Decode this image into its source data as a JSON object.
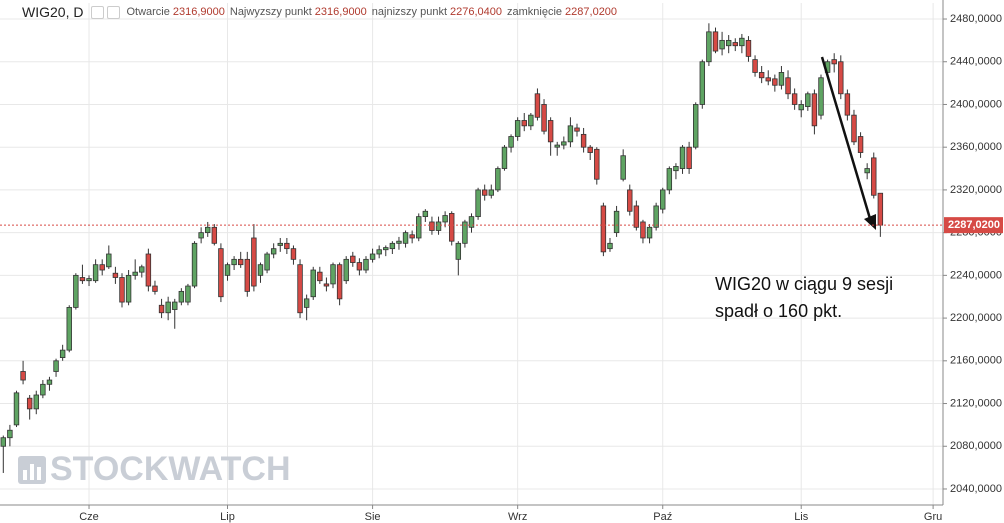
{
  "chart_data": {
    "type": "candlestick",
    "symbol": "WIG20, D",
    "header_fields": [
      {
        "name": "Otwarcie",
        "value": "2316,9000"
      },
      {
        "name": "Najwyzszy punkt",
        "value": "2316,9000"
      },
      {
        "name": "najnizszy punkt",
        "value": "2276,0400"
      },
      {
        "name": "zamknięcie",
        "value": "2287,0200"
      }
    ],
    "annotation": [
      "WIG20 w ciągu 9 sesji",
      "spadł o 160 pkt."
    ],
    "watermark": "STOCKWATCH",
    "up_color": "#5fa463",
    "down_color": "#d64a45",
    "grid": true,
    "xlim": [
      -0.5,
      142.5
    ],
    "xticks": [
      {
        "value": 13,
        "label": "Cze"
      },
      {
        "value": 34,
        "label": "Lip"
      },
      {
        "value": 56,
        "label": "Sie"
      },
      {
        "value": 78,
        "label": "Wrz"
      },
      {
        "value": 100,
        "label": "Paź"
      },
      {
        "value": 121,
        "label": "Lis"
      },
      {
        "value": 141,
        "label": "Gru"
      }
    ],
    "ylim": [
      2025,
      2495
    ],
    "yticks": [
      {
        "value": 2040,
        "label": "2040,0000"
      },
      {
        "value": 2080,
        "label": "2080,0000"
      },
      {
        "value": 2120,
        "label": "2120,0000"
      },
      {
        "value": 2160,
        "label": "2160,0000"
      },
      {
        "value": 2200,
        "label": "2200,0000"
      },
      {
        "value": 2240,
        "label": "2240,0000"
      },
      {
        "value": 2280,
        "label": "2280,0000"
      },
      {
        "value": 2320,
        "label": "2320,0000"
      },
      {
        "value": 2360,
        "label": "2360,0000"
      },
      {
        "value": 2400,
        "label": "2400,0000"
      },
      {
        "value": 2440,
        "label": "2440,0000"
      },
      {
        "value": 2480,
        "label": "2480,0000"
      }
    ],
    "last_price": {
      "value": 2287.02,
      "label": "2287,0200"
    },
    "ohlc": [
      [
        2080,
        2090,
        2055,
        2088
      ],
      [
        2088,
        2100,
        2080,
        2095
      ],
      [
        2100,
        2132,
        2098,
        2130
      ],
      [
        2150,
        2160,
        2138,
        2142
      ],
      [
        2125,
        2128,
        2105,
        2115
      ],
      [
        2115,
        2132,
        2110,
        2128
      ],
      [
        2128,
        2142,
        2125,
        2138
      ],
      [
        2138,
        2145,
        2132,
        2142
      ],
      [
        2150,
        2162,
        2145,
        2160
      ],
      [
        2163,
        2175,
        2160,
        2170
      ],
      [
        2170,
        2212,
        2168,
        2210
      ],
      [
        2210,
        2242,
        2208,
        2240
      ],
      [
        2238,
        2250,
        2232,
        2235
      ],
      [
        2235,
        2240,
        2230,
        2237
      ],
      [
        2235,
        2255,
        2233,
        2250
      ],
      [
        2250,
        2255,
        2240,
        2245
      ],
      [
        2248,
        2268,
        2246,
        2260
      ],
      [
        2242,
        2248,
        2232,
        2238
      ],
      [
        2238,
        2242,
        2210,
        2215
      ],
      [
        2215,
        2245,
        2212,
        2240
      ],
      [
        2240,
        2255,
        2236,
        2243
      ],
      [
        2243,
        2250,
        2238,
        2248
      ],
      [
        2260,
        2265,
        2225,
        2230
      ],
      [
        2230,
        2235,
        2222,
        2225
      ],
      [
        2212,
        2218,
        2200,
        2205
      ],
      [
        2205,
        2220,
        2198,
        2215
      ],
      [
        2208,
        2218,
        2190,
        2215
      ],
      [
        2215,
        2228,
        2212,
        2225
      ],
      [
        2215,
        2232,
        2212,
        2230
      ],
      [
        2230,
        2272,
        2228,
        2270
      ],
      [
        2275,
        2285,
        2270,
        2280
      ],
      [
        2280,
        2290,
        2276,
        2285
      ],
      [
        2285,
        2288,
        2268,
        2270
      ],
      [
        2265,
        2270,
        2215,
        2220
      ],
      [
        2240,
        2252,
        2235,
        2250
      ],
      [
        2250,
        2258,
        2245,
        2255
      ],
      [
        2255,
        2262,
        2247,
        2250
      ],
      [
        2255,
        2262,
        2220,
        2225
      ],
      [
        2275,
        2288,
        2225,
        2230
      ],
      [
        2240,
        2252,
        2233,
        2250
      ],
      [
        2245,
        2262,
        2242,
        2260
      ],
      [
        2260,
        2270,
        2256,
        2265
      ],
      [
        2268,
        2275,
        2262,
        2270
      ],
      [
        2270,
        2275,
        2260,
        2265
      ],
      [
        2265,
        2268,
        2250,
        2255
      ],
      [
        2250,
        2255,
        2200,
        2205
      ],
      [
        2210,
        2222,
        2198,
        2218
      ],
      [
        2220,
        2248,
        2217,
        2245
      ],
      [
        2243,
        2248,
        2232,
        2235
      ],
      [
        2232,
        2238,
        2225,
        2230
      ],
      [
        2232,
        2252,
        2228,
        2250
      ],
      [
        2250,
        2252,
        2212,
        2218
      ],
      [
        2235,
        2258,
        2232,
        2255
      ],
      [
        2258,
        2262,
        2248,
        2252
      ],
      [
        2252,
        2256,
        2240,
        2245
      ],
      [
        2245,
        2258,
        2242,
        2255
      ],
      [
        2255,
        2265,
        2252,
        2260
      ],
      [
        2260,
        2268,
        2256,
        2264
      ],
      [
        2264,
        2268,
        2258,
        2266
      ],
      [
        2265,
        2272,
        2260,
        2270
      ],
      [
        2270,
        2276,
        2264,
        2272
      ],
      [
        2270,
        2282,
        2266,
        2280
      ],
      [
        2278,
        2282,
        2270,
        2275
      ],
      [
        2275,
        2298,
        2272,
        2295
      ],
      [
        2295,
        2302,
        2290,
        2300
      ],
      [
        2290,
        2295,
        2278,
        2282
      ],
      [
        2282,
        2295,
        2278,
        2290
      ],
      [
        2290,
        2300,
        2285,
        2296
      ],
      [
        2298,
        2300,
        2268,
        2272
      ],
      [
        2255,
        2272,
        2240,
        2270
      ],
      [
        2270,
        2292,
        2266,
        2290
      ],
      [
        2285,
        2298,
        2280,
        2295
      ],
      [
        2295,
        2322,
        2292,
        2320
      ],
      [
        2320,
        2325,
        2310,
        2315
      ],
      [
        2315,
        2325,
        2312,
        2320
      ],
      [
        2320,
        2342,
        2318,
        2340
      ],
      [
        2340,
        2362,
        2338,
        2360
      ],
      [
        2360,
        2372,
        2355,
        2370
      ],
      [
        2370,
        2388,
        2366,
        2385
      ],
      [
        2385,
        2392,
        2375,
        2380
      ],
      [
        2380,
        2392,
        2376,
        2390
      ],
      [
        2410,
        2415,
        2385,
        2388
      ],
      [
        2400,
        2405,
        2372,
        2375
      ],
      [
        2385,
        2388,
        2352,
        2365
      ],
      [
        2360,
        2365,
        2352,
        2362
      ],
      [
        2362,
        2370,
        2358,
        2365
      ],
      [
        2365,
        2388,
        2360,
        2380
      ],
      [
        2378,
        2382,
        2370,
        2375
      ],
      [
        2372,
        2378,
        2355,
        2360
      ],
      [
        2360,
        2362,
        2348,
        2355
      ],
      [
        2358,
        2360,
        2325,
        2330
      ],
      [
        2305,
        2308,
        2258,
        2262
      ],
      [
        2265,
        2275,
        2262,
        2270
      ],
      [
        2280,
        2305,
        2276,
        2300
      ],
      [
        2330,
        2358,
        2328,
        2352
      ],
      [
        2320,
        2325,
        2296,
        2300
      ],
      [
        2305,
        2310,
        2282,
        2285
      ],
      [
        2290,
        2292,
        2270,
        2275
      ],
      [
        2275,
        2288,
        2270,
        2285
      ],
      [
        2285,
        2308,
        2282,
        2305
      ],
      [
        2302,
        2322,
        2298,
        2320
      ],
      [
        2320,
        2342,
        2316,
        2340
      ],
      [
        2338,
        2345,
        2330,
        2342
      ],
      [
        2340,
        2362,
        2335,
        2360
      ],
      [
        2360,
        2365,
        2335,
        2340
      ],
      [
        2360,
        2402,
        2358,
        2400
      ],
      [
        2400,
        2442,
        2396,
        2440
      ],
      [
        2440,
        2476,
        2436,
        2468
      ],
      [
        2468,
        2472,
        2448,
        2450
      ],
      [
        2452,
        2468,
        2446,
        2460
      ],
      [
        2455,
        2465,
        2448,
        2460
      ],
      [
        2458,
        2462,
        2450,
        2455
      ],
      [
        2455,
        2466,
        2448,
        2462
      ],
      [
        2460,
        2464,
        2440,
        2445
      ],
      [
        2442,
        2446,
        2426,
        2430
      ],
      [
        2430,
        2436,
        2420,
        2425
      ],
      [
        2425,
        2432,
        2418,
        2422
      ],
      [
        2424,
        2428,
        2412,
        2418
      ],
      [
        2418,
        2436,
        2414,
        2430
      ],
      [
        2425,
        2432,
        2405,
        2410
      ],
      [
        2410,
        2415,
        2395,
        2400
      ],
      [
        2395,
        2404,
        2388,
        2400
      ],
      [
        2398,
        2412,
        2394,
        2410
      ],
      [
        2410,
        2414,
        2372,
        2380
      ],
      [
        2390,
        2428,
        2386,
        2425
      ],
      [
        2430,
        2442,
        2426,
        2440
      ],
      [
        2442,
        2448,
        2430,
        2438
      ],
      [
        2440,
        2446,
        2405,
        2410
      ],
      [
        2410,
        2414,
        2385,
        2390
      ],
      [
        2390,
        2395,
        2362,
        2365
      ],
      [
        2370,
        2374,
        2350,
        2355
      ],
      [
        2336,
        2345,
        2330,
        2340
      ],
      [
        2350,
        2355,
        2312,
        2315
      ],
      [
        2316.9,
        2316.9,
        2276.04,
        2287.02
      ]
    ]
  }
}
